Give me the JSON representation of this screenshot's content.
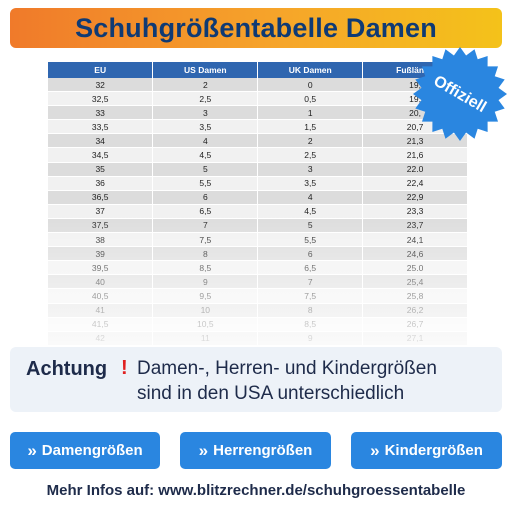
{
  "title": "Schuhgrößentabelle Damen",
  "table": {
    "headers": [
      "EU",
      "US Damen",
      "UK Damen",
      "Fußlänge"
    ],
    "rows": [
      [
        "32",
        "2",
        "0",
        "19,"
      ],
      [
        "32,5",
        "2,5",
        "0,5",
        "19,"
      ],
      [
        "33",
        "3",
        "1",
        "20,"
      ],
      [
        "33,5",
        "3,5",
        "1,5",
        "20,7"
      ],
      [
        "34",
        "4",
        "2",
        "21,3"
      ],
      [
        "34,5",
        "4,5",
        "2,5",
        "21,6"
      ],
      [
        "35",
        "5",
        "3",
        "22.0"
      ],
      [
        "36",
        "5,5",
        "3,5",
        "22,4"
      ],
      [
        "36,5",
        "6",
        "4",
        "22,9"
      ],
      [
        "37",
        "6,5",
        "4,5",
        "23,3"
      ],
      [
        "37,5",
        "7",
        "5",
        "23,7"
      ],
      [
        "38",
        "7,5",
        "5,5",
        "24,1"
      ],
      [
        "39",
        "8",
        "6",
        "24,6"
      ],
      [
        "39,5",
        "8,5",
        "6,5",
        "25.0"
      ],
      [
        "40",
        "9",
        "7",
        "25,4"
      ],
      [
        "40,5",
        "9,5",
        "7,5",
        "25,8"
      ],
      [
        "41",
        "10",
        "8",
        "26,2"
      ],
      [
        "41,5",
        "10,5",
        "8,5",
        "26,7"
      ],
      [
        "42",
        "11",
        "9",
        "27,1"
      ]
    ]
  },
  "badge": {
    "label": "Offiziell",
    "color": "#2a86e0"
  },
  "notice": {
    "label": "Achtung",
    "mark": "!",
    "line1": "Damen-, Herren- und Kindergrößen",
    "line2": "sind in den USA unterschiedlich"
  },
  "buttons": {
    "chevron": "»",
    "women": "Damengrößen",
    "men": "Herrengrößen",
    "kids": "Kindergrößen"
  },
  "footer": "Mehr Infos auf: www.blitzrechner.de/schuhgroessentabelle",
  "colors": {
    "title_text": "#0f3a74",
    "header_bg": "#2f66b0",
    "button_bg": "#2a86e0",
    "warning": "#e02020"
  }
}
